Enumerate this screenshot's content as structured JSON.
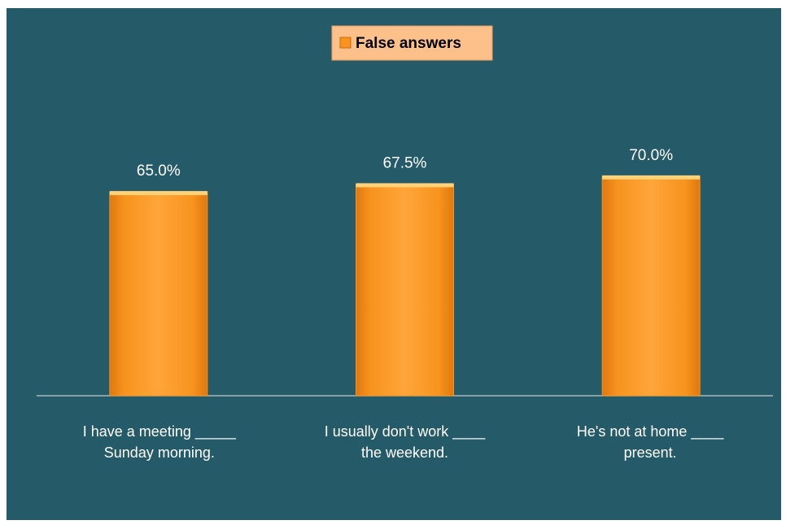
{
  "chart_data": {
    "type": "bar",
    "categories": [
      "I have a meeting _____\nSunday morning.",
      "I usually don't work ____\nthe weekend.",
      "He's not at home ____\npresent."
    ],
    "series": [
      {
        "name": "False answers",
        "color": "#f7931e",
        "values": [
          65.0,
          67.5,
          70.0
        ],
        "value_labels": [
          "65.0%",
          "67.5%",
          "70.0%"
        ]
      }
    ],
    "ylim": [
      0,
      100
    ],
    "legend": "top"
  }
}
